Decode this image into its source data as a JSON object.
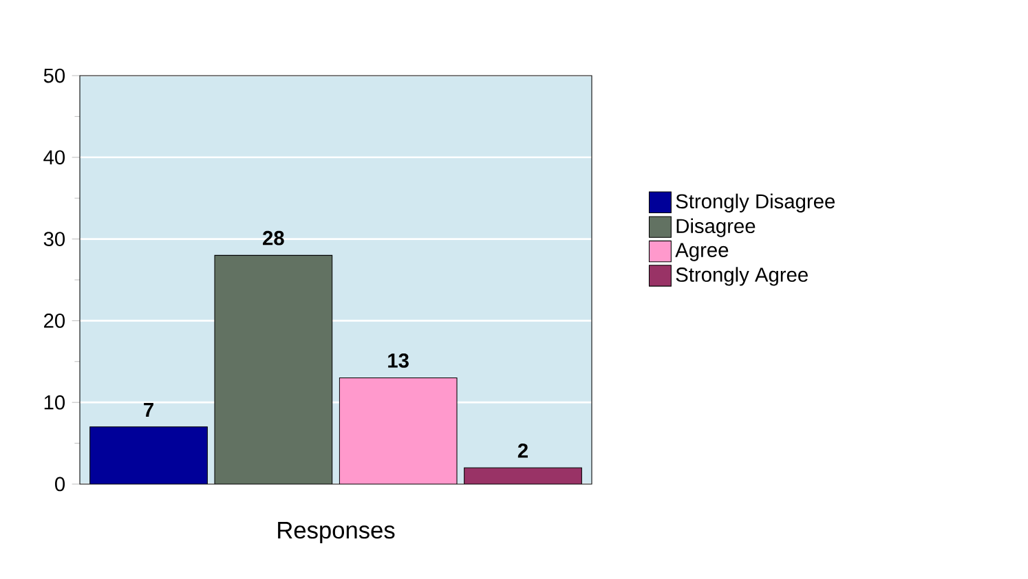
{
  "chart_data": {
    "type": "bar",
    "xlabel": "Responses",
    "categories": [
      null
    ],
    "series": [
      {
        "name": "Strongly Disagree",
        "color": "#000099",
        "values": [
          7
        ]
      },
      {
        "name": "Disagree",
        "color": "#627262",
        "values": [
          28
        ]
      },
      {
        "name": "Agree",
        "color": "#ff99cc",
        "values": [
          13
        ]
      },
      {
        "name": "Strongly Agree",
        "color": "#993366",
        "values": [
          2
        ]
      }
    ],
    "ylim": [
      0,
      50
    ],
    "yticks": [
      0,
      10,
      20,
      30,
      40,
      50
    ],
    "grid": "y",
    "legend": "right",
    "data_labels": true
  }
}
